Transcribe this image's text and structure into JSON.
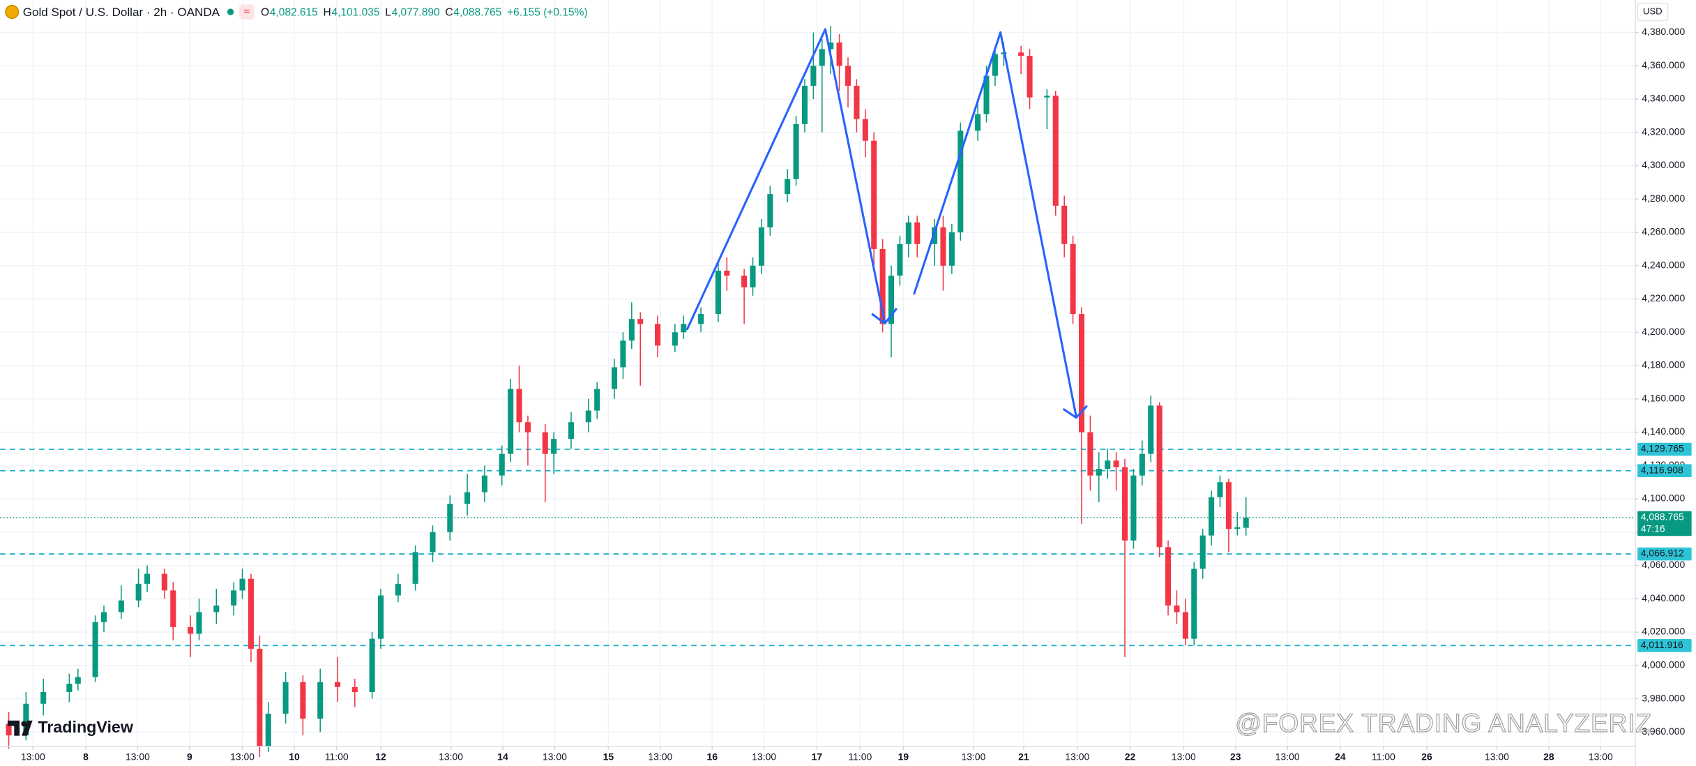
{
  "chart_data": {
    "type": "candlestick",
    "title": "Gold Spot / U.S. Dollar · 2h · OANDA",
    "badge": "≈",
    "ohlc_legend": [
      {
        "label": "O",
        "value": "4,082.615"
      },
      {
        "label": "H",
        "value": "4,101.035"
      },
      {
        "label": "L",
        "value": "4,077.890"
      },
      {
        "label": "C",
        "value": "4,088.765"
      }
    ],
    "change": "+6.155 (+0.15%)",
    "currency": "USD",
    "up_color": "#089981",
    "down_color": "#f23645",
    "grid": true,
    "ylim": [
      3951.3,
      4399.5
    ],
    "xlim": [
      0,
      189
    ],
    "yticks": [
      {
        "value": 3960,
        "label": "3,960.000"
      },
      {
        "value": 3980,
        "label": "3,980.000"
      },
      {
        "value": 4000,
        "label": "4,000.000"
      },
      {
        "value": 4020,
        "label": "4,020.000"
      },
      {
        "value": 4040,
        "label": "4,040.000"
      },
      {
        "value": 4060,
        "label": "4,060.000"
      },
      {
        "value": 4080,
        "label": "4,080.000"
      },
      {
        "value": 4100,
        "label": "4,100.000"
      },
      {
        "value": 4120,
        "label": "4,120.000"
      },
      {
        "value": 4140,
        "label": "4,140.000"
      },
      {
        "value": 4160,
        "label": "4,160.000"
      },
      {
        "value": 4180,
        "label": "4,180.000"
      },
      {
        "value": 4200,
        "label": "4,200.000"
      },
      {
        "value": 4220,
        "label": "4,220.000"
      },
      {
        "value": 4240,
        "label": "4,240.000"
      },
      {
        "value": 4260,
        "label": "4,260.000"
      },
      {
        "value": 4280,
        "label": "4,280.000"
      },
      {
        "value": 4300,
        "label": "4,300.000"
      },
      {
        "value": 4320,
        "label": "4,320.000"
      },
      {
        "value": 4340,
        "label": "4,340.000"
      },
      {
        "value": 4360,
        "label": "4,360.000"
      },
      {
        "value": 4380,
        "label": "4,380.000"
      }
    ],
    "xticks": [
      {
        "value": 3.8,
        "label": "13:00"
      },
      {
        "value": 9.9,
        "label": "8"
      },
      {
        "value": 15.9,
        "label": "13:00"
      },
      {
        "value": 21.9,
        "label": "9"
      },
      {
        "value": 28,
        "label": "13:00"
      },
      {
        "value": 34,
        "label": "10"
      },
      {
        "value": 38.9,
        "label": "11:00"
      },
      {
        "value": 44,
        "label": "12"
      },
      {
        "value": 52.1,
        "label": "13:00"
      },
      {
        "value": 58.1,
        "label": "14"
      },
      {
        "value": 64.1,
        "label": "13:00"
      },
      {
        "value": 70.3,
        "label": "15"
      },
      {
        "value": 76.3,
        "label": "13:00"
      },
      {
        "value": 82.3,
        "label": "16"
      },
      {
        "value": 88.3,
        "label": "13:00"
      },
      {
        "value": 94.4,
        "label": "17"
      },
      {
        "value": 99.4,
        "label": "11:00"
      },
      {
        "value": 104.4,
        "label": "19"
      },
      {
        "value": 112.5,
        "label": "13:00"
      },
      {
        "value": 118.3,
        "label": "21"
      },
      {
        "value": 124.5,
        "label": "13:00"
      },
      {
        "value": 130.6,
        "label": "22"
      },
      {
        "value": 136.8,
        "label": "13:00"
      },
      {
        "value": 142.8,
        "label": "23"
      },
      {
        "value": 148.8,
        "label": "13:00"
      },
      {
        "value": 154.9,
        "label": "24"
      },
      {
        "value": 159.9,
        "label": "11:00"
      },
      {
        "value": 164.9,
        "label": "26"
      },
      {
        "value": 173,
        "label": "13:00"
      },
      {
        "value": 179,
        "label": "28"
      },
      {
        "value": 185,
        "label": "13:00"
      }
    ],
    "x": [
      1,
      3,
      5,
      8,
      9,
      11,
      12,
      14,
      16,
      17,
      19,
      20,
      22,
      23,
      25,
      27,
      28,
      29,
      30,
      31,
      33,
      35,
      37,
      39,
      41,
      43,
      44,
      46,
      48,
      50,
      52,
      54,
      56,
      58,
      59,
      60,
      61,
      63,
      64,
      66,
      68,
      69,
      71,
      72,
      73,
      74,
      76,
      78,
      79,
      81,
      83,
      84,
      86,
      87,
      88,
      89,
      91,
      92,
      93,
      94,
      95,
      96,
      97,
      98,
      99,
      100,
      101,
      102,
      103,
      104,
      105,
      106,
      108,
      109,
      110,
      111,
      113,
      114,
      115,
      116,
      118,
      119,
      121,
      122,
      123,
      124,
      125,
      126,
      127,
      128,
      129,
      130,
      131,
      132,
      133,
      134,
      135,
      136,
      137,
      138,
      139,
      140,
      141,
      142,
      143,
      144
    ],
    "ohlc": [
      [
        3965,
        3972,
        3950,
        3958
      ],
      [
        3958,
        3984,
        3955,
        3977
      ],
      [
        3977,
        3992,
        3970,
        3984
      ],
      [
        3984,
        3995,
        3978,
        3989
      ],
      [
        3989,
        3998,
        3985,
        3993
      ],
      [
        3993,
        4030,
        3990,
        4026
      ],
      [
        4026,
        4036,
        4020,
        4032
      ],
      [
        4032,
        4048,
        4028,
        4039
      ],
      [
        4039,
        4058,
        4035,
        4049
      ],
      [
        4049,
        4060,
        4044,
        4055
      ],
      [
        4055,
        4058,
        4040,
        4045
      ],
      [
        4045,
        4050,
        4015,
        4023
      ],
      [
        4023,
        4030,
        4005,
        4019
      ],
      [
        4019,
        4040,
        4015,
        4032
      ],
      [
        4032,
        4046,
        4025,
        4036
      ],
      [
        4036,
        4050,
        4030,
        4045
      ],
      [
        4045,
        4058,
        4040,
        4052
      ],
      [
        4052,
        4055,
        4002,
        4010
      ],
      [
        4010,
        4018,
        3945,
        3951
      ],
      [
        3951,
        3978,
        3948,
        3971
      ],
      [
        3971,
        3996,
        3965,
        3990
      ],
      [
        3990,
        3994,
        3958,
        3968
      ],
      [
        3968,
        3998,
        3960,
        3990
      ],
      [
        3990,
        4005,
        3978,
        3987
      ],
      [
        3987,
        3992,
        3975,
        3984
      ],
      [
        3984,
        4020,
        3980,
        4016
      ],
      [
        4016,
        4046,
        4010,
        4042
      ],
      [
        4042,
        4055,
        4038,
        4049
      ],
      [
        4049,
        4072,
        4045,
        4068
      ],
      [
        4068,
        4084,
        4062,
        4080
      ],
      [
        4080,
        4102,
        4075,
        4097
      ],
      [
        4097,
        4115,
        4090,
        4104
      ],
      [
        4104,
        4120,
        4098,
        4114
      ],
      [
        4114,
        4132,
        4108,
        4127
      ],
      [
        4127,
        4172,
        4122,
        4166
      ],
      [
        4166,
        4180,
        4140,
        4146
      ],
      [
        4146,
        4150,
        4120,
        4140
      ],
      [
        4140,
        4145,
        4098,
        4127
      ],
      [
        4127,
        4140,
        4115,
        4136
      ],
      [
        4136,
        4152,
        4130,
        4146
      ],
      [
        4146,
        4160,
        4140,
        4153
      ],
      [
        4153,
        4170,
        4148,
        4166
      ],
      [
        4166,
        4184,
        4160,
        4179
      ],
      [
        4179,
        4200,
        4172,
        4195
      ],
      [
        4195,
        4218,
        4190,
        4208
      ],
      [
        4208,
        4212,
        4168,
        4205
      ],
      [
        4205,
        4210,
        4185,
        4192
      ],
      [
        4192,
        4205,
        4188,
        4200
      ],
      [
        4200,
        4210,
        4196,
        4205
      ],
      [
        4205,
        4215,
        4200,
        4211
      ],
      [
        4211,
        4242,
        4206,
        4237
      ],
      [
        4237,
        4245,
        4225,
        4234
      ],
      [
        4234,
        4238,
        4205,
        4227
      ],
      [
        4227,
        4245,
        4222,
        4240
      ],
      [
        4240,
        4268,
        4235,
        4263
      ],
      [
        4263,
        4288,
        4258,
        4283
      ],
      [
        4283,
        4298,
        4278,
        4292
      ],
      [
        4292,
        4330,
        4288,
        4325
      ],
      [
        4325,
        4352,
        4320,
        4348
      ],
      [
        4348,
        4380,
        4340,
        4360
      ],
      [
        4360,
        4376,
        4320,
        4370
      ],
      [
        4370,
        4384,
        4355,
        4374
      ],
      [
        4374,
        4379,
        4345,
        4360
      ],
      [
        4360,
        4365,
        4335,
        4348
      ],
      [
        4348,
        4352,
        4320,
        4328
      ],
      [
        4328,
        4334,
        4305,
        4315
      ],
      [
        4315,
        4320,
        4240,
        4250
      ],
      [
        4250,
        4256,
        4200,
        4205
      ],
      [
        4205,
        4240,
        4185,
        4234
      ],
      [
        4234,
        4258,
        4228,
        4253
      ],
      [
        4253,
        4270,
        4245,
        4266
      ],
      [
        4266,
        4270,
        4245,
        4253
      ],
      [
        4253,
        4268,
        4240,
        4263
      ],
      [
        4263,
        4270,
        4225,
        4240
      ],
      [
        4240,
        4265,
        4235,
        4260
      ],
      [
        4260,
        4326,
        4255,
        4321
      ],
      [
        4321,
        4340,
        4315,
        4331
      ],
      [
        4331,
        4360,
        4326,
        4354
      ],
      [
        4354,
        4372,
        4348,
        4367
      ],
      [
        4367,
        4374,
        4360,
        4368
      ],
      [
        4368,
        4372,
        4355,
        4366
      ],
      [
        4366,
        4370,
        4334,
        4341
      ],
      [
        4341,
        4346,
        4322,
        4342
      ],
      [
        4342,
        4345,
        4270,
        4276
      ],
      [
        4276,
        4282,
        4245,
        4253
      ],
      [
        4253,
        4258,
        4205,
        4211
      ],
      [
        4211,
        4215,
        4085,
        4140
      ],
      [
        4140,
        4150,
        4105,
        4114
      ],
      [
        4114,
        4128,
        4098,
        4118
      ],
      [
        4118,
        4130,
        4112,
        4123
      ],
      [
        4123,
        4128,
        4105,
        4119
      ],
      [
        4119,
        4124,
        4005,
        4075
      ],
      [
        4075,
        4118,
        4070,
        4114
      ],
      [
        4114,
        4135,
        4108,
        4127
      ],
      [
        4127,
        4162,
        4122,
        4156
      ],
      [
        4156,
        4158,
        4065,
        4071
      ],
      [
        4071,
        4075,
        4030,
        4036
      ],
      [
        4036,
        4045,
        4025,
        4032
      ],
      [
        4032,
        4040,
        4012,
        4016
      ],
      [
        4016,
        4062,
        4012,
        4058
      ],
      [
        4058,
        4082,
        4052,
        4078
      ],
      [
        4078,
        4105,
        4072,
        4101
      ],
      [
        4101,
        4114,
        4095,
        4110
      ],
      [
        4110,
        4112,
        4068,
        4082
      ],
      [
        4082,
        4092,
        4078,
        4083
      ],
      [
        4082.615,
        4101.035,
        4077.89,
        4088.765
      ]
    ],
    "level_color": "#1fb2c6",
    "levels": [
      {
        "value": 4129.765,
        "label": "4,129.765"
      },
      {
        "value": 4116.908,
        "label": "4,116.908"
      },
      {
        "value": 4066.912,
        "label": "4,066.912"
      },
      {
        "value": 4011.916,
        "label": "4,011.916"
      }
    ],
    "last_price": {
      "value": 4088.765,
      "label": "4,088.765",
      "countdown": "47:16"
    },
    "logo": "TradingView",
    "watermark": "@FOREX TRADING ANALYZERIZ"
  }
}
